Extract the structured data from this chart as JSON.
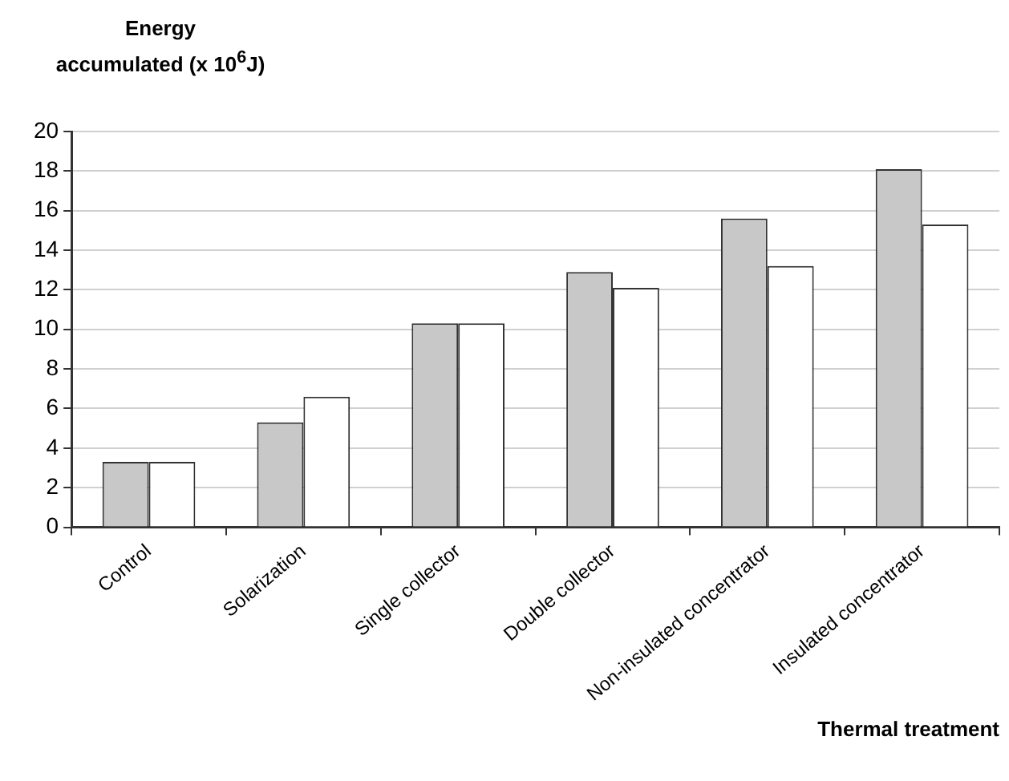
{
  "chart_data": {
    "type": "bar",
    "ylabel": "Energy\naccumulated (x 10$^{6}$J)",
    "xlabel": "Thermal treatment",
    "categories": [
      "Control",
      "Solarization",
      "Single collector",
      "Double collector",
      "Non-insulated concentrator",
      "Insulated concentrator"
    ],
    "series": [
      {
        "color": "#c8c8c8",
        "values": [
          3.3,
          5.3,
          10.3,
          12.9,
          15.6,
          18.1
        ]
      },
      {
        "color": "#ffffff",
        "values": [
          3.3,
          6.6,
          10.3,
          12.1,
          13.2,
          15.3
        ]
      }
    ],
    "ylim": [
      0,
      20
    ],
    "yticks": [
      0,
      2,
      4,
      6,
      8,
      10,
      12,
      14,
      16,
      18,
      20
    ],
    "grid": "y",
    "legend": false
  }
}
